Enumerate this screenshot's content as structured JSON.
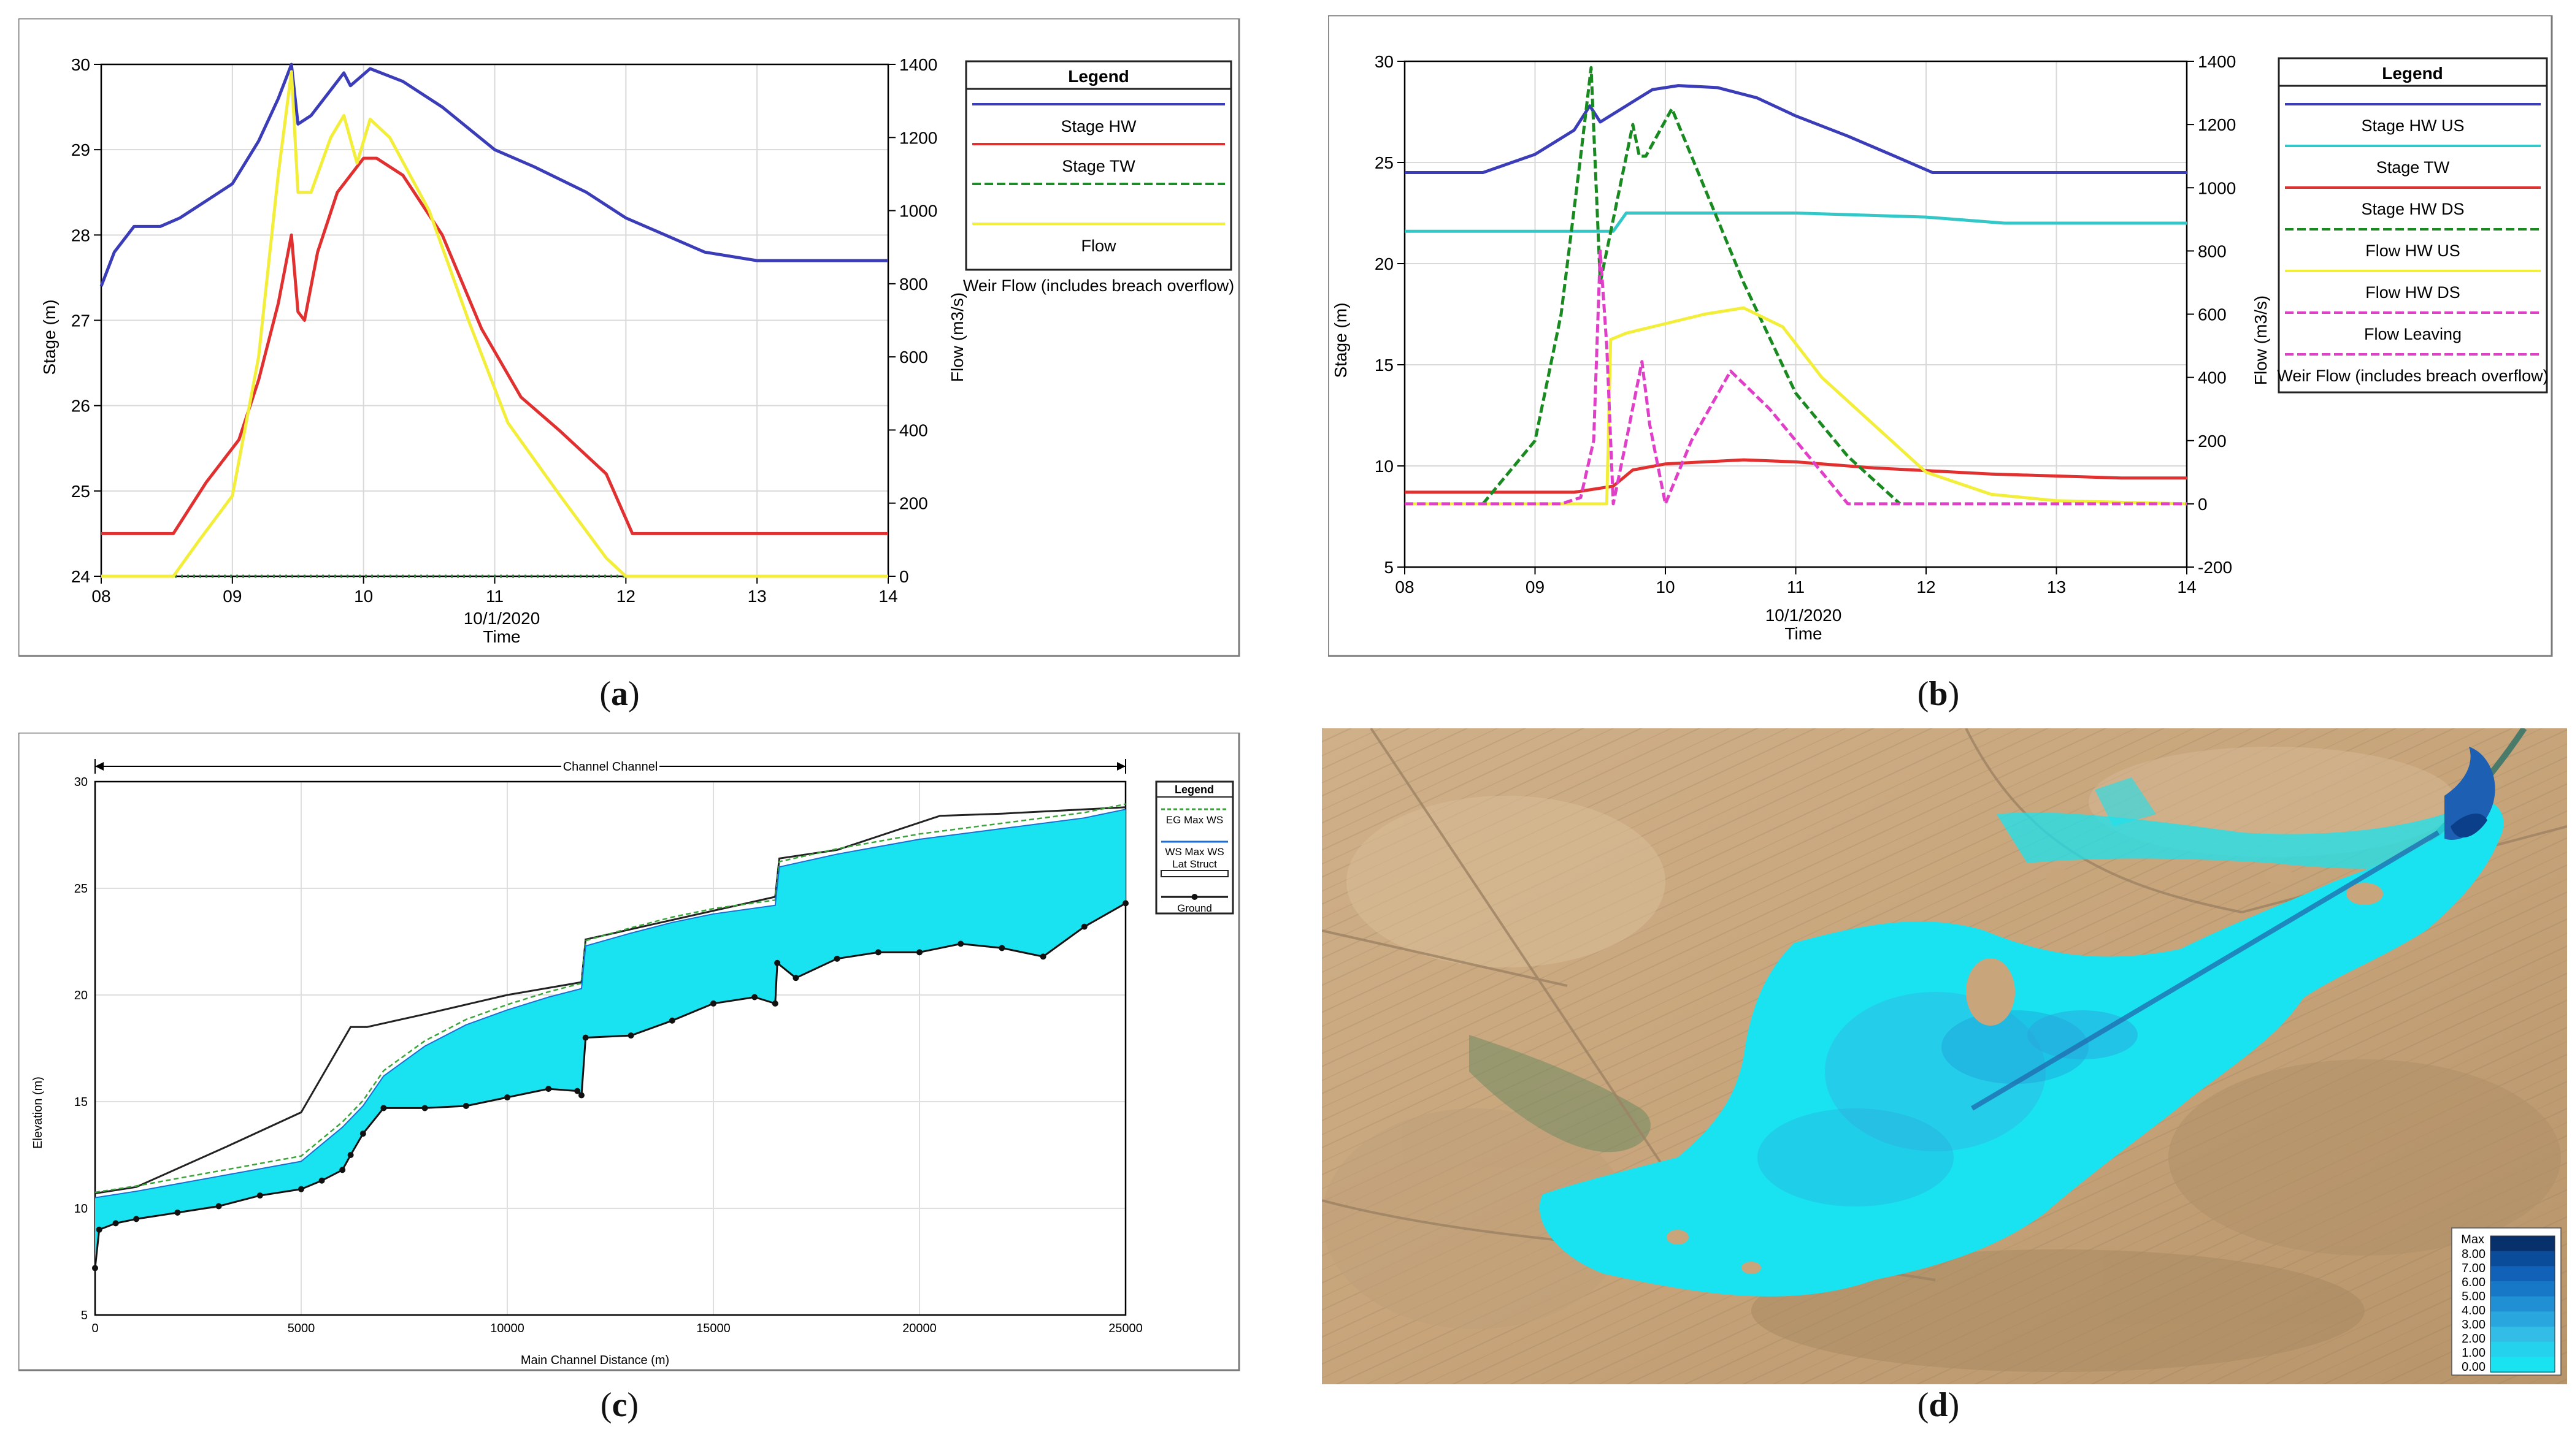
{
  "colors": {
    "blue": "#3b3cb8",
    "red": "#e03030",
    "green": "#1f8a2a",
    "yellow": "#f2ee3a",
    "cyan": "#33c7c7",
    "magenta": "#e040c8",
    "darkgreen": "#188a20",
    "water": "#19e3f0"
  },
  "captions": {
    "a": "a",
    "b": "b",
    "c": "c",
    "d": "d"
  },
  "chart_data": [
    {
      "id": "a",
      "type": "line",
      "title": "",
      "date_label": "10/1/2020",
      "xlabel": "Time",
      "ylabel": "Stage (m)",
      "y2label": "Flow (m3/s)",
      "xlim": [
        8,
        14
      ],
      "x_ticks": [
        "08",
        "09",
        "10",
        "11",
        "12",
        "13",
        "14"
      ],
      "ylim": [
        24,
        30
      ],
      "y_ticks": [
        "24",
        "25",
        "26",
        "27",
        "28",
        "29",
        "30"
      ],
      "y2lim": [
        0,
        1400
      ],
      "y2_ticks": [
        "0",
        "200",
        "400",
        "600",
        "800",
        "1000",
        "1200",
        "1400"
      ],
      "legend": {
        "title": "Legend",
        "entries": [
          "Stage HW",
          "Stage TW",
          "",
          "Flow",
          "Weir Flow (includes breach overflow)"
        ]
      },
      "series": [
        {
          "name": "Stage HW",
          "axis": "left",
          "style": "solid",
          "color": "blue",
          "points": [
            [
              8.0,
              27.4
            ],
            [
              8.1,
              27.8
            ],
            [
              8.25,
              28.1
            ],
            [
              8.35,
              28.1
            ],
            [
              8.45,
              28.1
            ],
            [
              8.6,
              28.2
            ],
            [
              8.8,
              28.4
            ],
            [
              9.0,
              28.6
            ],
            [
              9.2,
              29.1
            ],
            [
              9.35,
              29.6
            ],
            [
              9.45,
              30.0
            ],
            [
              9.5,
              29.3
            ],
            [
              9.6,
              29.4
            ],
            [
              9.75,
              29.7
            ],
            [
              9.85,
              29.9
            ],
            [
              9.9,
              29.75
            ],
            [
              10.05,
              29.95
            ],
            [
              10.3,
              29.8
            ],
            [
              10.6,
              29.5
            ],
            [
              11.0,
              29.0
            ],
            [
              11.3,
              28.8
            ],
            [
              11.7,
              28.5
            ],
            [
              12.0,
              28.2
            ],
            [
              12.3,
              28.0
            ],
            [
              12.6,
              27.8
            ],
            [
              13.0,
              27.7
            ],
            [
              13.5,
              27.7
            ],
            [
              14.0,
              27.7
            ]
          ]
        },
        {
          "name": "Stage TW",
          "axis": "left",
          "style": "solid",
          "color": "red",
          "points": [
            [
              8.0,
              24.5
            ],
            [
              8.55,
              24.5
            ],
            [
              8.8,
              25.1
            ],
            [
              9.05,
              25.6
            ],
            [
              9.2,
              26.3
            ],
            [
              9.35,
              27.2
            ],
            [
              9.45,
              28.0
            ],
            [
              9.5,
              27.1
            ],
            [
              9.55,
              27.0
            ],
            [
              9.65,
              27.8
            ],
            [
              9.8,
              28.5
            ],
            [
              10.0,
              28.9
            ],
            [
              10.1,
              28.9
            ],
            [
              10.3,
              28.7
            ],
            [
              10.6,
              28.0
            ],
            [
              10.9,
              26.9
            ],
            [
              11.2,
              26.1
            ],
            [
              11.5,
              25.7
            ],
            [
              11.85,
              25.2
            ],
            [
              12.05,
              24.5
            ],
            [
              14.0,
              24.5
            ]
          ]
        },
        {
          "name": "Flow",
          "axis": "right",
          "style": "dotted",
          "color": "green",
          "points": [
            [
              8.0,
              0
            ],
            [
              14.0,
              0
            ]
          ]
        },
        {
          "name": "Weir Flow (includes breach overflow)",
          "axis": "right",
          "style": "solid",
          "color": "yellow",
          "points": [
            [
              8.0,
              0
            ],
            [
              8.55,
              0
            ],
            [
              8.75,
              100
            ],
            [
              9.0,
              220
            ],
            [
              9.2,
              600
            ],
            [
              9.35,
              1100
            ],
            [
              9.45,
              1380
            ],
            [
              9.5,
              1050
            ],
            [
              9.6,
              1050
            ],
            [
              9.75,
              1200
            ],
            [
              9.85,
              1260
            ],
            [
              9.95,
              1130
            ],
            [
              10.05,
              1250
            ],
            [
              10.2,
              1200
            ],
            [
              10.5,
              1000
            ],
            [
              10.8,
              700
            ],
            [
              11.1,
              420
            ],
            [
              11.5,
              220
            ],
            [
              11.85,
              50
            ],
            [
              12.0,
              0
            ],
            [
              14.0,
              0
            ]
          ]
        }
      ]
    },
    {
      "id": "b",
      "type": "line",
      "title": "",
      "date_label": "10/1/2020",
      "xlabel": "Time",
      "ylabel": "Stage (m)",
      "y2label": "Flow (m3/s)",
      "xlim": [
        8,
        14
      ],
      "x_ticks": [
        "08",
        "09",
        "10",
        "11",
        "12",
        "13",
        "14"
      ],
      "ylim": [
        5,
        30
      ],
      "y_ticks": [
        "5",
        "10",
        "15",
        "20",
        "25",
        "30"
      ],
      "y2lim": [
        -200,
        1400
      ],
      "y2_ticks": [
        "-200",
        "0",
        "200",
        "400",
        "600",
        "800",
        "1000",
        "1200",
        "1400"
      ],
      "legend": {
        "title": "Legend",
        "entries": [
          "Stage HW US",
          "Stage TW",
          "Stage HW DS",
          "Flow HW US",
          "Flow HW DS",
          "Flow Leaving",
          "Weir Flow (includes breach overflow)"
        ]
      },
      "series": [
        {
          "name": "Stage HW US",
          "axis": "left",
          "style": "solid",
          "color": "blue",
          "points": [
            [
              8.0,
              24.5
            ],
            [
              8.6,
              24.5
            ],
            [
              9.0,
              25.4
            ],
            [
              9.3,
              26.6
            ],
            [
              9.42,
              27.8
            ],
            [
              9.5,
              27.0
            ],
            [
              9.65,
              27.6
            ],
            [
              9.9,
              28.6
            ],
            [
              10.1,
              28.8
            ],
            [
              10.4,
              28.7
            ],
            [
              10.7,
              28.2
            ],
            [
              11.0,
              27.3
            ],
            [
              11.4,
              26.3
            ],
            [
              11.8,
              25.2
            ],
            [
              12.05,
              24.5
            ],
            [
              14.0,
              24.5
            ]
          ]
        },
        {
          "name": "Stage TW",
          "axis": "left",
          "style": "solid",
          "color": "cyan",
          "points": [
            [
              8.0,
              21.6
            ],
            [
              9.6,
              21.6
            ],
            [
              9.7,
              22.5
            ],
            [
              11.0,
              22.5
            ],
            [
              12.0,
              22.3
            ],
            [
              12.6,
              22.0
            ],
            [
              14.0,
              22.0
            ]
          ]
        },
        {
          "name": "Stage HW DS",
          "axis": "left",
          "style": "solid",
          "color": "red",
          "points": [
            [
              8.0,
              8.7
            ],
            [
              9.3,
              8.7
            ],
            [
              9.6,
              9.0
            ],
            [
              9.75,
              9.8
            ],
            [
              10.0,
              10.1
            ],
            [
              10.6,
              10.3
            ],
            [
              11.0,
              10.2
            ],
            [
              11.6,
              9.9
            ],
            [
              12.5,
              9.6
            ],
            [
              13.5,
              9.4
            ],
            [
              14.0,
              9.4
            ]
          ]
        },
        {
          "name": "Flow HW US",
          "axis": "right",
          "style": "dashed",
          "color": "darkgreen",
          "points": [
            [
              8.6,
              0
            ],
            [
              8.8,
              100
            ],
            [
              9.0,
              200
            ],
            [
              9.2,
              600
            ],
            [
              9.35,
              1100
            ],
            [
              9.43,
              1380
            ],
            [
              9.5,
              700
            ],
            [
              9.6,
              900
            ],
            [
              9.75,
              1200
            ],
            [
              9.8,
              1100
            ],
            [
              9.85,
              1100
            ],
            [
              10.05,
              1250
            ],
            [
              10.3,
              1000
            ],
            [
              10.6,
              700
            ],
            [
              11.0,
              350
            ],
            [
              11.4,
              150
            ],
            [
              11.8,
              0
            ]
          ]
        },
        {
          "name": "Flow HW DS",
          "axis": "right",
          "style": "solid",
          "color": "yellow",
          "points": [
            [
              8.0,
              0
            ],
            [
              9.55,
              0
            ],
            [
              9.58,
              520
            ],
            [
              9.7,
              540
            ],
            [
              10.0,
              570
            ],
            [
              10.3,
              600
            ],
            [
              10.6,
              620
            ],
            [
              10.9,
              560
            ],
            [
              11.2,
              400
            ],
            [
              11.6,
              250
            ],
            [
              12.0,
              100
            ],
            [
              12.5,
              30
            ],
            [
              13.0,
              10
            ],
            [
              14.0,
              0
            ]
          ]
        },
        {
          "name": "Flow Leaving",
          "axis": "right",
          "style": "dashed",
          "color": "magenta",
          "points": [
            [
              8.0,
              0
            ],
            [
              9.2,
              0
            ],
            [
              9.35,
              20
            ],
            [
              9.45,
              200
            ],
            [
              9.5,
              800
            ],
            [
              9.55,
              500
            ],
            [
              9.6,
              0
            ],
            [
              9.7,
              200
            ],
            [
              9.82,
              450
            ],
            [
              9.88,
              250
            ],
            [
              10.0,
              0
            ],
            [
              10.2,
              200
            ],
            [
              10.5,
              420
            ],
            [
              10.8,
              300
            ],
            [
              11.1,
              150
            ],
            [
              11.4,
              0
            ],
            [
              14.0,
              0
            ]
          ]
        }
      ]
    },
    {
      "id": "c",
      "type": "area",
      "title": "Channel Channel",
      "xlabel": "Main Channel Distance (m)",
      "ylabel": "Elevation (m)",
      "xlim": [
        0,
        25000
      ],
      "x_ticks": [
        "0",
        "5000",
        "10000",
        "15000",
        "20000",
        "25000"
      ],
      "ylim": [
        5,
        30
      ],
      "y_ticks": [
        "5",
        "10",
        "15",
        "20",
        "25",
        "30"
      ],
      "legend": {
        "title": "Legend",
        "entries": [
          "EG  Max WS",
          "WS  Max WS",
          "Lat Struct",
          "Ground"
        ]
      },
      "ground": [
        [
          0,
          7.2
        ],
        [
          100,
          9.0
        ],
        [
          500,
          9.3
        ],
        [
          1000,
          9.5
        ],
        [
          2000,
          9.8
        ],
        [
          3000,
          10.1
        ],
        [
          4000,
          10.6
        ],
        [
          5000,
          10.9
        ],
        [
          5500,
          11.3
        ],
        [
          6000,
          11.8
        ],
        [
          6200,
          12.5
        ],
        [
          6500,
          13.5
        ],
        [
          7000,
          14.7
        ],
        [
          8000,
          14.7
        ],
        [
          9000,
          14.8
        ],
        [
          10000,
          15.2
        ],
        [
          11000,
          15.6
        ],
        [
          11700,
          15.5
        ],
        [
          11800,
          15.3
        ],
        [
          11900,
          18.0
        ],
        [
          13000,
          18.1
        ],
        [
          14000,
          18.8
        ],
        [
          15000,
          19.6
        ],
        [
          16000,
          19.9
        ],
        [
          16500,
          19.6
        ],
        [
          16550,
          21.5
        ],
        [
          17000,
          20.8
        ],
        [
          18000,
          21.7
        ],
        [
          19000,
          22.0
        ],
        [
          20000,
          22.0
        ],
        [
          21000,
          22.4
        ],
        [
          22000,
          22.2
        ],
        [
          23000,
          21.8
        ],
        [
          24000,
          23.2
        ],
        [
          25000,
          24.3
        ]
      ],
      "water_surface": [
        [
          0,
          10.5
        ],
        [
          1000,
          10.8
        ],
        [
          3000,
          11.5
        ],
        [
          5000,
          12.2
        ],
        [
          6000,
          13.8
        ],
        [
          6500,
          14.8
        ],
        [
          7000,
          16.2
        ],
        [
          8000,
          17.6
        ],
        [
          9000,
          18.6
        ],
        [
          10000,
          19.3
        ],
        [
          11000,
          19.9
        ],
        [
          11800,
          20.3
        ],
        [
          11900,
          22.3
        ],
        [
          13000,
          22.9
        ],
        [
          14000,
          23.4
        ],
        [
          15000,
          23.8
        ],
        [
          16500,
          24.2
        ],
        [
          16600,
          26.0
        ],
        [
          18000,
          26.6
        ],
        [
          20000,
          27.3
        ],
        [
          22000,
          27.8
        ],
        [
          24000,
          28.3
        ],
        [
          25000,
          28.7
        ]
      ],
      "lat_struct": [
        [
          0,
          10.7
        ],
        [
          1000,
          11.0
        ],
        [
          3200,
          12.9
        ],
        [
          5000,
          14.5
        ],
        [
          6200,
          18.5
        ],
        [
          6600,
          18.5
        ],
        [
          8000,
          19.1
        ],
        [
          10000,
          20.0
        ],
        [
          11800,
          20.6
        ],
        [
          11900,
          22.6
        ],
        [
          13500,
          23.3
        ],
        [
          16500,
          24.6
        ],
        [
          16600,
          26.4
        ],
        [
          18000,
          26.8
        ],
        [
          20500,
          28.4
        ],
        [
          22000,
          28.5
        ],
        [
          25000,
          28.8
        ]
      ],
      "range_label": "Channel Channel"
    },
    {
      "id": "d",
      "type": "heatmap",
      "title": "",
      "legend": {
        "title": "Max",
        "entries": [
          "8.00",
          "7.00",
          "6.00",
          "5.00",
          "4.00",
          "3.00",
          "2.00",
          "1.00",
          "0.00"
        ]
      },
      "colorscale": [
        "#08306b",
        "#0b4c9a",
        "#1261b8",
        "#1878c8",
        "#218fd3",
        "#2aa6de",
        "#33bde6",
        "#25d2ee",
        "#19e3f0"
      ]
    }
  ]
}
